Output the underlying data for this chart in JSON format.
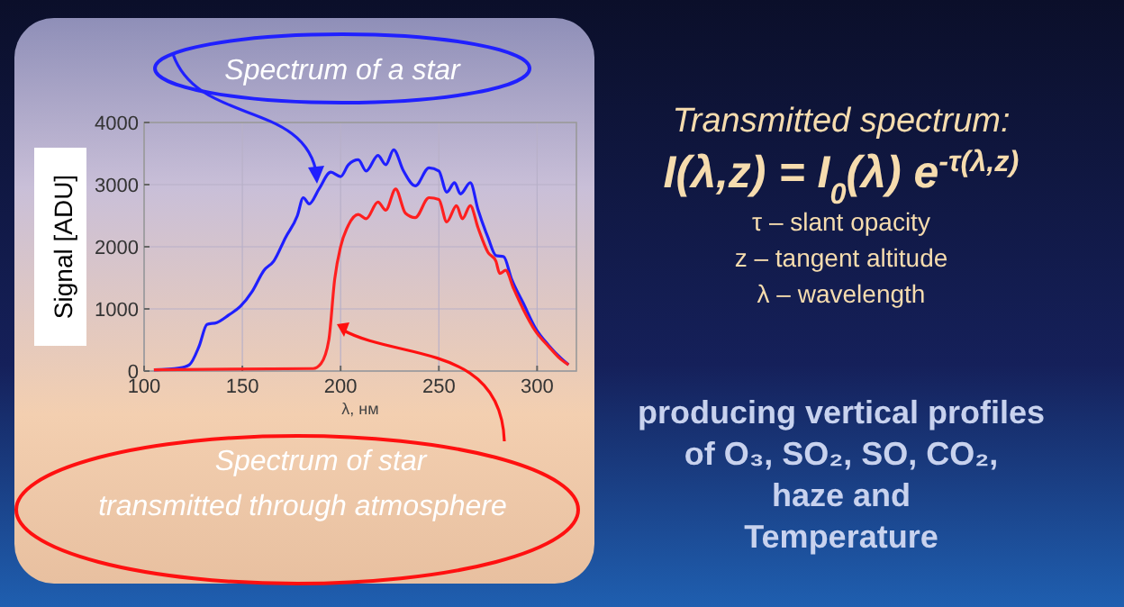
{
  "chart_data": {
    "type": "line",
    "xlabel": "λ, нм",
    "ylabel": "Signal [ADU]",
    "xlim": [
      100,
      320
    ],
    "xticks": [
      100,
      150,
      200,
      250,
      300
    ],
    "ylim": [
      0,
      4000
    ],
    "yticks": [
      0,
      1000,
      2000,
      3000,
      4000
    ],
    "grid": true,
    "line_style": "solid",
    "series": [
      {
        "color": "#1f1fff",
        "x": [
          105,
          118,
          123,
          128,
          132,
          137,
          143,
          149,
          155,
          161,
          166,
          172,
          178,
          181,
          184,
          189,
          195,
          200,
          204,
          209,
          213,
          219,
          223,
          227,
          232,
          238,
          245,
          250,
          254,
          258,
          261,
          266,
          270,
          275,
          279,
          283,
          287,
          293,
          299,
          306,
          312,
          316
        ],
        "values": [
          20,
          50,
          100,
          400,
          750,
          780,
          900,
          1040,
          1280,
          1620,
          1770,
          2150,
          2500,
          2790,
          2690,
          2930,
          3200,
          3130,
          3320,
          3400,
          3220,
          3470,
          3320,
          3560,
          3220,
          2980,
          3270,
          3220,
          2880,
          3030,
          2850,
          3030,
          2590,
          2150,
          1860,
          1840,
          1480,
          1090,
          700,
          410,
          210,
          100
        ]
      },
      {
        "color": "#ff1f1f",
        "x": [
          105,
          186,
          190,
          194,
          197,
          200,
          204,
          209,
          213,
          219,
          223,
          228,
          233,
          238,
          245,
          250,
          254,
          259,
          262,
          266,
          270,
          275,
          279,
          281,
          284,
          288,
          293,
          299,
          306,
          312,
          316
        ],
        "values": [
          20,
          40,
          120,
          500,
          1480,
          2000,
          2350,
          2520,
          2450,
          2720,
          2590,
          2930,
          2540,
          2470,
          2790,
          2760,
          2400,
          2660,
          2450,
          2660,
          2300,
          1910,
          1770,
          1570,
          1620,
          1330,
          990,
          650,
          390,
          190,
          100
        ]
      }
    ],
    "annotations": [
      "Spectrum of a star",
      "Spectrum of star transmitted through atmosphere",
      "Transmitted spectrum:",
      "I(λ,z) = I$_{0}$(λ) e$^{-τ(λ,z)}$",
      "τ – slant  opacity",
      "z – tangent  altitude",
      "λ – wavelength",
      "producing vertical profiles",
      "of O₃, SO₂, SO, CO₂,",
      "haze and",
      "Temperature"
    ]
  }
}
